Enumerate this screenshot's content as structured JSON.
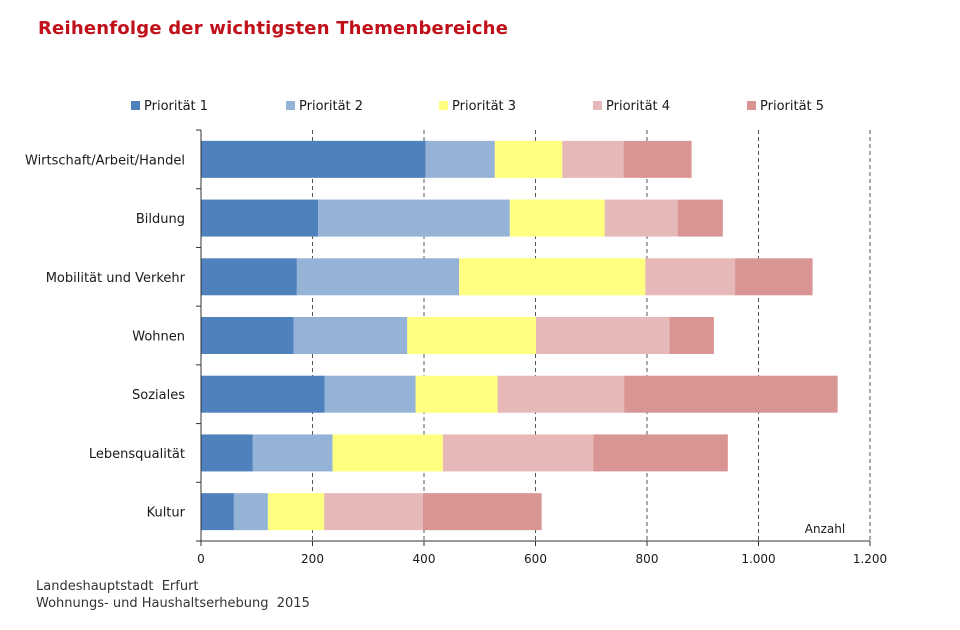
{
  "title": "Reihenfolge der wichtigsten Themenbereiche",
  "footer": {
    "line1": "Landeshauptstadt  Erfurt",
    "line2": "Wohnungs- und Haushaltserhebung  2015"
  },
  "colors": {
    "title": "#c0101a",
    "series": [
      "#4f81bd",
      "#95b3d7",
      "#ffff80",
      "#e6b9b8",
      "#d99594"
    ]
  },
  "chart_data": {
    "type": "bar",
    "orientation": "horizontal",
    "stacked": true,
    "title": "Reihenfolge der wichtigsten Themenbereiche",
    "xlabel": "Anzahl",
    "ylabel": "",
    "xlim": [
      0,
      1200
    ],
    "x_ticks": [
      0,
      200,
      400,
      600,
      800,
      1000,
      1200
    ],
    "x_tick_labels": [
      "0",
      "200",
      "400",
      "600",
      "800",
      "1.000",
      "1.200"
    ],
    "grid": "vertical dashed",
    "legend_position": "top",
    "categories": [
      "Wirtschaft/Arbeit/Handel",
      "Bildung",
      "Mobilität und Verkehr",
      "Wohnen",
      "Soziales",
      "Lebensqualität",
      "Kultur"
    ],
    "series": [
      {
        "name": "Priorität 1",
        "values": [
          403,
          210,
          172,
          166,
          222,
          93,
          59
        ]
      },
      {
        "name": "Priorität 2",
        "values": [
          124,
          344,
          291,
          204,
          163,
          143,
          61
        ]
      },
      {
        "name": "Priorität 3",
        "values": [
          121,
          170,
          334,
          231,
          147,
          198,
          101
        ]
      },
      {
        "name": "Priorität 4",
        "values": [
          110,
          131,
          161,
          239,
          227,
          270,
          177
        ]
      },
      {
        "name": "Priorität 5",
        "values": [
          122,
          81,
          139,
          80,
          383,
          241,
          213
        ]
      }
    ]
  }
}
